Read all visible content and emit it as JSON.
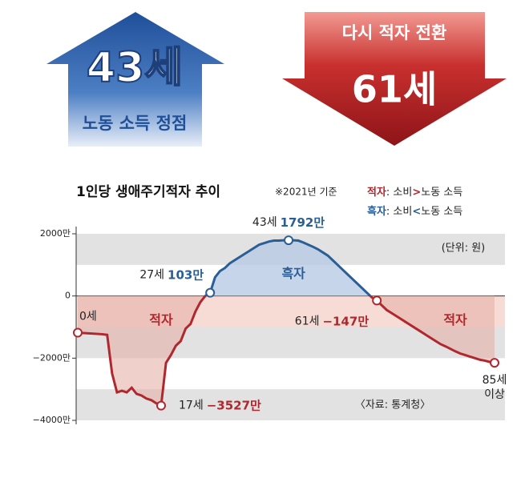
{
  "header": {
    "left": {
      "age": "43세",
      "caption": "노동 소득 정점"
    },
    "right": {
      "caption": "다시 적자 전환",
      "age": "61세"
    }
  },
  "chart_data": {
    "type": "line",
    "title": "1인당 생애주기적자 추이",
    "note": "※2021년 기준",
    "legend": [
      {
        "name": "적자",
        "color": "#b0282e",
        "before": ": 소비",
        "symbol": ">",
        "after": "노동 소득"
      },
      {
        "name": "흑자",
        "color": "#2a5f96",
        "before": ": 소비",
        "symbol": "<",
        "after": "노동 소득"
      }
    ],
    "unit": "(단위: 원)",
    "source": "〈자료: 통계청〉",
    "x": [
      0,
      5,
      6,
      7,
      8,
      9,
      10,
      11,
      12,
      13,
      14,
      15,
      16,
      17,
      18,
      19,
      20,
      21,
      22,
      23,
      24,
      25,
      26,
      27,
      28,
      29,
      30,
      31,
      32,
      33,
      34,
      35,
      36,
      37,
      38,
      39,
      40,
      41,
      42,
      43,
      44,
      45,
      46,
      47,
      48,
      49,
      50,
      51,
      52,
      53,
      54,
      55,
      56,
      57,
      58,
      59,
      60,
      61,
      62,
      63,
      64,
      65,
      66,
      67,
      68,
      69,
      70,
      71,
      72,
      73,
      74,
      75,
      76,
      77,
      78,
      79,
      80,
      81,
      82,
      83,
      84,
      85
    ],
    "series": [
      {
        "name": "생애주기적자",
        "color": "#b0282e",
        "positive_color": "#2a5f96",
        "values": [
          -1180,
          -1230,
          -1250,
          -2490,
          -3100,
          -3050,
          -3100,
          -2950,
          -3150,
          -3200,
          -3300,
          -3350,
          -3450,
          -3527,
          -2150,
          -1900,
          -1600,
          -1450,
          -1050,
          -900,
          -500,
          -200,
          0,
          103,
          600,
          800,
          900,
          1050,
          1150,
          1250,
          1350,
          1450,
          1550,
          1650,
          1700,
          1750,
          1780,
          1780,
          1790,
          1792,
          1790,
          1780,
          1720,
          1650,
          1580,
          1500,
          1400,
          1300,
          1150,
          1000,
          850,
          700,
          550,
          400,
          250,
          100,
          -50,
          -147,
          -300,
          -450,
          -550,
          -650,
          -750,
          -850,
          -950,
          -1050,
          -1150,
          -1250,
          -1350,
          -1450,
          -1550,
          -1620,
          -1700,
          -1780,
          -1850,
          -1900,
          -1950,
          -2000,
          -2050,
          -2080,
          -2120,
          -2150
        ]
      }
    ],
    "highlights": [
      {
        "index": 0,
        "age": "0세"
      },
      {
        "index": 13,
        "age": "17세",
        "value": "−3527만"
      },
      {
        "index": 23,
        "age": "27세",
        "value": "103만"
      },
      {
        "index": 39,
        "age": "43세",
        "value": "1792만"
      },
      {
        "index": 57,
        "age": "61세",
        "value": "−147만"
      },
      {
        "index": 81,
        "age": "85세",
        "age2": "이상"
      }
    ],
    "region_labels": [
      {
        "text": "적자",
        "x": 17,
        "y": -800,
        "color": "#b0282e"
      },
      {
        "text": "흑자",
        "x": 44,
        "y": 700,
        "color": "#2a5f96"
      },
      {
        "text": "적자",
        "x": 77,
        "y": -800,
        "color": "#b0282e"
      }
    ],
    "bands": [
      {
        "from": 1000,
        "to": 2000,
        "color": "#e2e2e2"
      },
      {
        "from": -1000,
        "to": 0,
        "color": "#f7dcd6"
      },
      {
        "from": -2000,
        "to": -1000,
        "color": "#e2e2e2"
      },
      {
        "from": -4000,
        "to": -3000,
        "color": "#e2e2e2"
      }
    ],
    "xlim": [
      0,
      85
    ],
    "ylim": [
      -4000,
      2000
    ],
    "yticks": [
      {
        "value": 2000,
        "label": "2000만"
      },
      0,
      {
        "value": -2000,
        "label": "−2000만"
      },
      {
        "value": -4000,
        "label": "−4000만"
      }
    ]
  }
}
